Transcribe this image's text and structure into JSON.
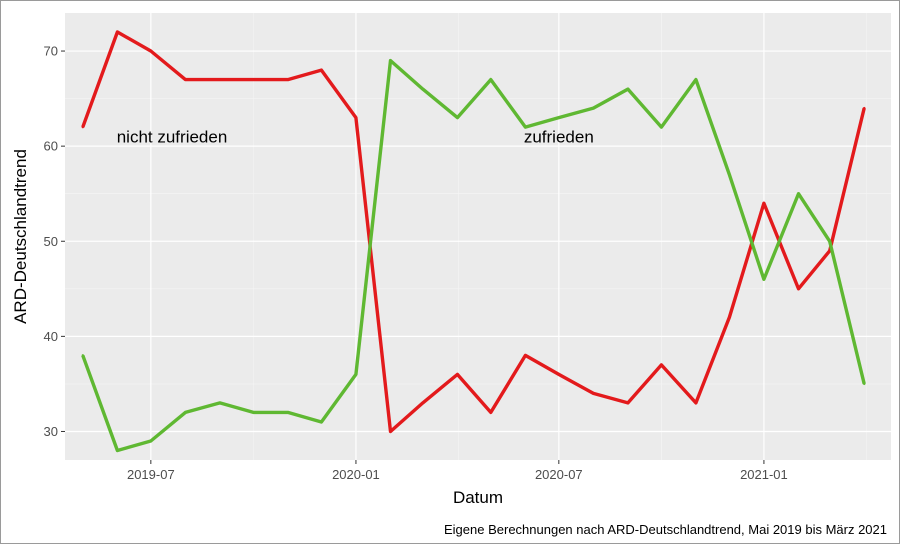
{
  "chart_data": {
    "type": "line",
    "xlabel": "Datum",
    "ylabel": "ARD-Deutschlandtrend",
    "caption": "Eigene Berechnungen nach ARD-Deutschlandtrend, Mai 2019 bis März 2021",
    "x_ticks": [
      "2019-07",
      "2020-01",
      "2020-07",
      "2021-01"
    ],
    "y_ticks": [
      30,
      40,
      50,
      60,
      70
    ],
    "ylim": [
      27,
      74
    ],
    "xlim": [
      "2019-04-15",
      "2021-04-25"
    ],
    "grid": true,
    "annotations": [
      {
        "text": "nicht zufrieden",
        "x": "2019-07-20",
        "y": 61
      },
      {
        "text": "zufrieden",
        "x": "2020-07-01",
        "y": 61
      }
    ],
    "series": [
      {
        "name": "nicht zufrieden",
        "color": "#e31a1c",
        "x": [
          "2019-05-01",
          "2019-06-01",
          "2019-07-01",
          "2019-08-01",
          "2019-09-01",
          "2019-10-01",
          "2019-11-01",
          "2019-12-01",
          "2020-01-01",
          "2020-02-01",
          "2020-03-01",
          "2020-04-01",
          "2020-05-01",
          "2020-06-01",
          "2020-07-01",
          "2020-08-01",
          "2020-09-01",
          "2020-10-01",
          "2020-11-01",
          "2020-12-01",
          "2021-01-01",
          "2021-02-01",
          "2021-03-01",
          "2021-04-01"
        ],
        "values": [
          62,
          72,
          70,
          67,
          67,
          67,
          67,
          68,
          63,
          30,
          33,
          36,
          32,
          38,
          36,
          34,
          33,
          37,
          33,
          42,
          54,
          45,
          49,
          64
        ]
      },
      {
        "name": "zufrieden",
        "color": "#5fb832",
        "x": [
          "2019-05-01",
          "2019-06-01",
          "2019-07-01",
          "2019-08-01",
          "2019-09-01",
          "2019-10-01",
          "2019-11-01",
          "2019-12-01",
          "2020-01-01",
          "2020-02-01",
          "2020-03-01",
          "2020-04-01",
          "2020-05-01",
          "2020-06-01",
          "2020-07-01",
          "2020-08-01",
          "2020-09-01",
          "2020-10-01",
          "2020-11-01",
          "2020-12-01",
          "2021-01-01",
          "2021-02-01",
          "2021-03-01",
          "2021-04-01"
        ],
        "values": [
          38,
          28,
          29,
          32,
          33,
          32,
          32,
          31,
          36,
          69,
          66,
          63,
          67,
          62,
          63,
          64,
          66,
          62,
          67,
          57,
          46,
          55,
          50,
          35
        ]
      }
    ]
  },
  "colors": {
    "panel_background": "#ebebeb",
    "grid_major": "#ffffff",
    "grid_minor": "#f5f5f5"
  }
}
